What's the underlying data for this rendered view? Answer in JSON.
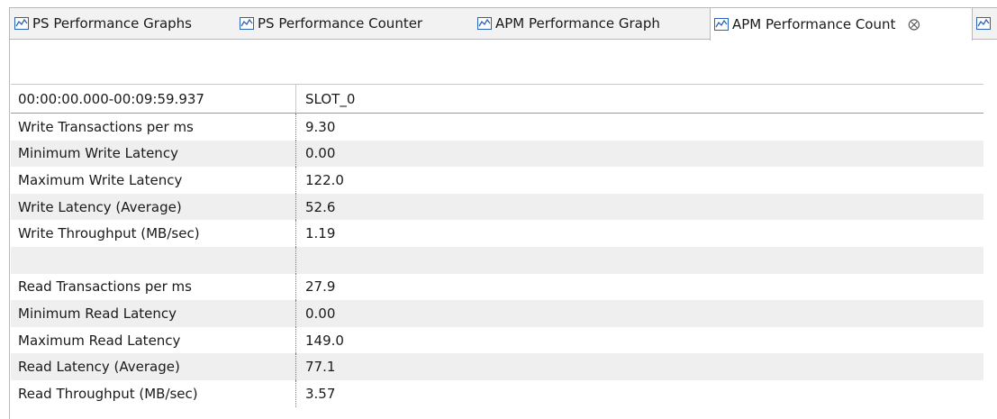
{
  "tabs": [
    "PS Performance Graphs",
    "PS Performance Counter",
    "APM Performance Graph",
    "APM Performance Count"
  ],
  "table": {
    "header": [
      "00:00:00.000-00:09:59.937",
      "SLOT_0"
    ],
    "write_rows": [
      [
        "Write Transactions per ms",
        "9.30"
      ],
      [
        "Minimum Write Latency",
        "0.00"
      ],
      [
        "Maximum Write Latency",
        "122.0"
      ],
      [
        "Write Latency (Average)",
        "52.6"
      ],
      [
        "Write Throughput (MB/sec)",
        "1.19"
      ]
    ],
    "read_rows": [
      [
        "Read Transactions per ms",
        "27.9"
      ],
      [
        "Minimum Read Latency",
        "0.00"
      ],
      [
        "Maximum Read Latency",
        "149.0"
      ],
      [
        "Read Latency (Average)",
        "77.1"
      ],
      [
        "Read Throughput (MB/sec)",
        "3.57"
      ]
    ]
  }
}
